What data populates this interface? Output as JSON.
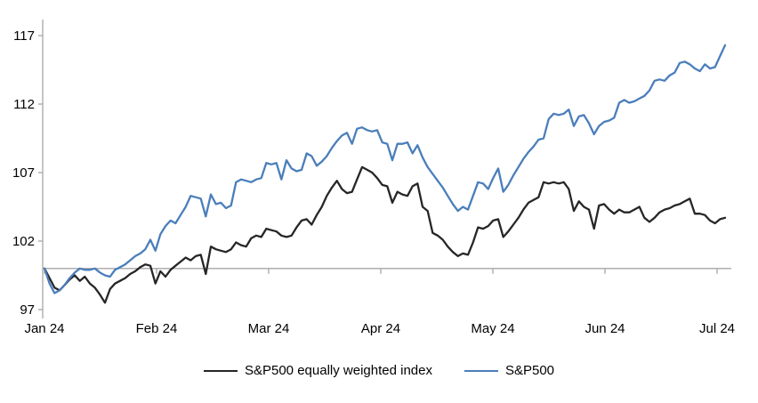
{
  "chart_data": {
    "type": "line",
    "title": "",
    "xlabel": "",
    "ylabel": "",
    "x_axis": {
      "categories": [
        "Jan 24",
        "Feb 24",
        "Mar 24",
        "Apr 24",
        "May 24",
        "Jun 24",
        "Jul 24"
      ]
    },
    "y_axis": {
      "ticks": [
        97,
        102,
        107,
        112,
        117
      ],
      "min": 97,
      "max": 117,
      "baseline": 100
    },
    "grid": false,
    "legend_position": "bottom",
    "series": [
      {
        "name": "S&P500 equally weighted index",
        "color": "#262626",
        "values": [
          100.0,
          99.3,
          98.6,
          98.4,
          98.8,
          99.2,
          99.5,
          99.1,
          99.4,
          98.9,
          98.6,
          98.1,
          97.5,
          98.5,
          98.9,
          99.1,
          99.3,
          99.6,
          99.8,
          100.1,
          100.3,
          100.2,
          98.9,
          99.8,
          99.4,
          99.9,
          100.2,
          100.5,
          100.8,
          100.6,
          100.9,
          101.0,
          99.6,
          101.6,
          101.4,
          101.3,
          101.2,
          101.4,
          101.9,
          101.7,
          101.6,
          102.2,
          102.4,
          102.3,
          102.9,
          102.8,
          102.7,
          102.4,
          102.3,
          102.4,
          103.0,
          103.5,
          103.6,
          103.2,
          103.9,
          104.5,
          105.3,
          105.9,
          106.4,
          105.8,
          105.5,
          105.6,
          106.5,
          107.4,
          107.2,
          107.0,
          106.6,
          106.1,
          106.0,
          104.8,
          105.6,
          105.4,
          105.3,
          106.0,
          106.2,
          104.5,
          104.2,
          102.6,
          102.4,
          102.1,
          101.6,
          101.2,
          100.9,
          101.1,
          101.0,
          101.9,
          103.0,
          102.9,
          103.1,
          103.5,
          103.6,
          102.3,
          102.7,
          103.2,
          103.7,
          104.3,
          104.8,
          105.0,
          105.2,
          106.3,
          106.2,
          106.3,
          106.2,
          106.3,
          105.8,
          104.2,
          104.9,
          104.5,
          104.3,
          102.9,
          104.6,
          104.7,
          104.3,
          104.0,
          104.3,
          104.1,
          104.1,
          104.3,
          104.5,
          103.7,
          103.4,
          103.7,
          104.1,
          104.3,
          104.4,
          104.6,
          104.7,
          104.9,
          105.1,
          104.0,
          104.0,
          103.9,
          103.5,
          103.3,
          103.6,
          103.7
        ]
      },
      {
        "name": "S&P500",
        "color": "#4a7ebb",
        "values": [
          100.0,
          98.9,
          98.2,
          98.4,
          98.8,
          99.3,
          99.7,
          100.0,
          99.9,
          99.9,
          100.0,
          99.7,
          99.5,
          99.4,
          99.9,
          100.1,
          100.3,
          100.6,
          100.9,
          101.1,
          101.4,
          102.1,
          101.3,
          102.5,
          103.1,
          103.5,
          103.3,
          103.9,
          104.5,
          105.3,
          105.2,
          105.1,
          103.8,
          105.4,
          104.7,
          104.8,
          104.4,
          104.6,
          106.3,
          106.5,
          106.4,
          106.3,
          106.5,
          106.6,
          107.7,
          107.6,
          107.7,
          106.5,
          107.9,
          107.3,
          107.1,
          107.2,
          108.4,
          108.2,
          107.5,
          107.8,
          108.2,
          108.8,
          109.3,
          109.7,
          109.9,
          109.1,
          110.2,
          110.3,
          110.1,
          110.0,
          110.1,
          109.2,
          109.1,
          107.9,
          109.1,
          109.1,
          109.2,
          108.4,
          109.0,
          108.1,
          107.4,
          106.9,
          106.4,
          105.9,
          105.3,
          104.7,
          104.2,
          104.5,
          104.3,
          105.3,
          106.3,
          106.2,
          105.8,
          106.6,
          107.3,
          105.6,
          106.1,
          106.8,
          107.4,
          108.0,
          108.5,
          108.9,
          109.4,
          109.5,
          110.9,
          111.3,
          111.2,
          111.3,
          111.6,
          110.4,
          111.1,
          111.2,
          110.6,
          109.8,
          110.4,
          110.7,
          110.8,
          111.0,
          112.1,
          112.3,
          112.1,
          112.2,
          112.4,
          112.6,
          113.0,
          113.7,
          113.8,
          113.7,
          114.1,
          114.3,
          115.0,
          115.1,
          114.9,
          114.6,
          114.4,
          114.9,
          114.6,
          114.7,
          115.5,
          116.3
        ]
      }
    ]
  },
  "legend": {
    "items": [
      {
        "label": "S&P500 equally weighted index",
        "color": "#262626"
      },
      {
        "label": "S&P500",
        "color": "#4a7ebb"
      }
    ]
  },
  "colors": {
    "axis": "#a6a6a6",
    "text": "#000000",
    "background": "#ffffff"
  }
}
